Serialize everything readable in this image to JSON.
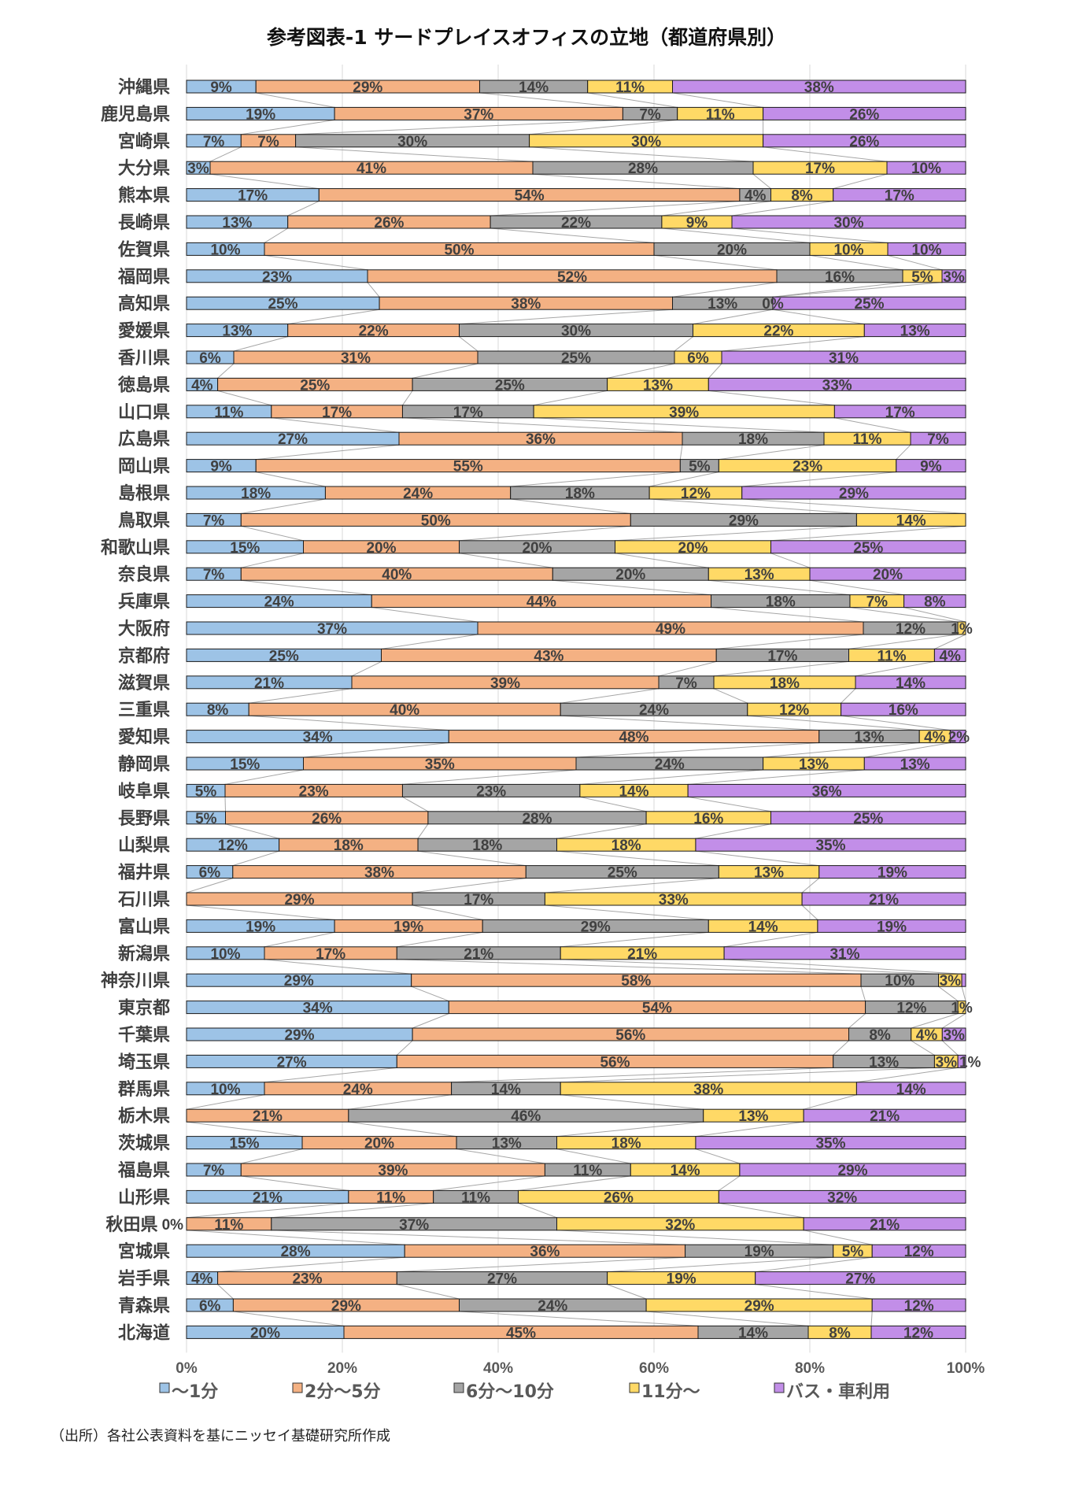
{
  "chart_data": {
    "type": "bar",
    "orientation": "horizontal",
    "stacked": "100%",
    "title": "参考図表-1  サードプレイスオフィスの立地（都道府県別）",
    "source": "（出所）各社公表資料を基にニッセイ基礎研究所作成",
    "xlim": [
      0,
      100
    ],
    "x_ticks": [
      "0%",
      "20%",
      "40%",
      "60%",
      "80%",
      "100%"
    ],
    "grid": true,
    "series_lines": true,
    "legend_position": "bottom",
    "series": [
      {
        "name": "～1分",
        "color": "#9dc3e6"
      },
      {
        "name": "2分～5分",
        "color": "#f4b183"
      },
      {
        "name": "6分～10分",
        "color": "#a5a5a5"
      },
      {
        "name": "11分～",
        "color": "#ffd966"
      },
      {
        "name": "バス・車利用",
        "color": "#c28ee8"
      }
    ],
    "rows": [
      {
        "category": "沖縄県",
        "values": [
          9,
          29,
          14,
          11,
          38
        ],
        "labels": [
          "9%",
          "29%",
          "14%",
          "11%",
          "38%"
        ]
      },
      {
        "category": "鹿児島県",
        "values": [
          19,
          37,
          7,
          11,
          26
        ],
        "labels": [
          "19%",
          "37%",
          "7%",
          "11%",
          "26%"
        ]
      },
      {
        "category": "宮崎県",
        "values": [
          7,
          7,
          30,
          30,
          26
        ],
        "labels": [
          "7%",
          "7%",
          "30%",
          "30%",
          "26%"
        ]
      },
      {
        "category": "大分県",
        "values": [
          3,
          41,
          28,
          17,
          10
        ],
        "labels": [
          "3%",
          "41%",
          "28%",
          "17%",
          "10%"
        ]
      },
      {
        "category": "熊本県",
        "values": [
          17,
          54,
          4,
          8,
          17
        ],
        "labels": [
          "17%",
          "54%",
          "4%",
          "8%",
          "17%"
        ]
      },
      {
        "category": "長崎県",
        "values": [
          13,
          26,
          22,
          9,
          30
        ],
        "labels": [
          "13%",
          "26%",
          "22%",
          "9%",
          "30%"
        ]
      },
      {
        "category": "佐賀県",
        "values": [
          10,
          50,
          20,
          10,
          10
        ],
        "labels": [
          "10%",
          "50%",
          "20%",
          "10%",
          "10%"
        ]
      },
      {
        "category": "福岡県",
        "values": [
          23,
          52,
          16,
          5,
          3
        ],
        "labels": [
          "23%",
          "52%",
          "16%",
          "5%",
          "3%"
        ]
      },
      {
        "category": "高知県",
        "values": [
          25,
          38,
          13,
          0,
          25
        ],
        "labels": [
          "25%",
          "38%",
          "13%",
          "0%",
          "25%"
        ]
      },
      {
        "category": "愛媛県",
        "values": [
          13,
          22,
          30,
          22,
          13
        ],
        "labels": [
          "13%",
          "22%",
          "30%",
          "22%",
          "13%"
        ]
      },
      {
        "category": "香川県",
        "values": [
          6,
          31,
          25,
          6,
          31
        ],
        "labels": [
          "6%",
          "31%",
          "25%",
          "6%",
          "31%"
        ]
      },
      {
        "category": "徳島県",
        "values": [
          4,
          25,
          25,
          13,
          33
        ],
        "labels": [
          "4%",
          "25%",
          "25%",
          "13%",
          "33%"
        ]
      },
      {
        "category": "山口県",
        "values": [
          11,
          17,
          17,
          39,
          17
        ],
        "labels": [
          "11%",
          "17%",
          "17%",
          "39%",
          "17%"
        ]
      },
      {
        "category": "広島県",
        "values": [
          27,
          36,
          18,
          11,
          7
        ],
        "labels": [
          "27%",
          "36%",
          "18%",
          "11%",
          "7%"
        ]
      },
      {
        "category": "岡山県",
        "values": [
          9,
          55,
          5,
          23,
          9
        ],
        "labels": [
          "9%",
          "55%",
          "5%",
          "23%",
          "9%"
        ]
      },
      {
        "category": "島根県",
        "values": [
          18,
          24,
          18,
          12,
          29
        ],
        "labels": [
          "18%",
          "24%",
          "18%",
          "12%",
          "29%"
        ]
      },
      {
        "category": "鳥取県",
        "values": [
          7,
          50,
          29,
          14,
          0
        ],
        "labels": [
          "7%",
          "50%",
          "29%",
          "14%",
          ""
        ]
      },
      {
        "category": "和歌山県",
        "values": [
          15,
          20,
          20,
          20,
          25
        ],
        "labels": [
          "15%",
          "20%",
          "20%",
          "20%",
          "25%"
        ]
      },
      {
        "category": "奈良県",
        "values": [
          7,
          40,
          20,
          13,
          20
        ],
        "labels": [
          "7%",
          "40%",
          "20%",
          "13%",
          "20%"
        ]
      },
      {
        "category": "兵庫県",
        "values": [
          24,
          44,
          18,
          7,
          8
        ],
        "labels": [
          "24%",
          "44%",
          "18%",
          "7%",
          "8%"
        ]
      },
      {
        "category": "大阪府",
        "values": [
          37,
          49,
          12,
          1,
          0
        ],
        "labels": [
          "37%",
          "49%",
          "12%",
          "1%",
          ""
        ]
      },
      {
        "category": "京都府",
        "values": [
          25,
          43,
          17,
          11,
          4
        ],
        "labels": [
          "25%",
          "43%",
          "17%",
          "11%",
          "4%"
        ]
      },
      {
        "category": "滋賀県",
        "values": [
          21,
          39,
          7,
          18,
          14
        ],
        "labels": [
          "21%",
          "39%",
          "7%",
          "18%",
          "14%"
        ]
      },
      {
        "category": "三重県",
        "values": [
          8,
          40,
          24,
          12,
          16
        ],
        "labels": [
          "8%",
          "40%",
          "24%",
          "12%",
          "16%"
        ]
      },
      {
        "category": "愛知県",
        "values": [
          34,
          48,
          13,
          4,
          2
        ],
        "labels": [
          "34%",
          "48%",
          "13%",
          "4%",
          "2%"
        ]
      },
      {
        "category": "静岡県",
        "values": [
          15,
          35,
          24,
          13,
          13
        ],
        "labels": [
          "15%",
          "35%",
          "24%",
          "13%",
          "13%"
        ]
      },
      {
        "category": "岐阜県",
        "values": [
          5,
          23,
          23,
          14,
          36
        ],
        "labels": [
          "5%",
          "23%",
          "23%",
          "14%",
          "36%"
        ]
      },
      {
        "category": "長野県",
        "values": [
          5,
          26,
          28,
          16,
          25
        ],
        "labels": [
          "5%",
          "26%",
          "28%",
          "16%",
          "25%"
        ]
      },
      {
        "category": "山梨県",
        "values": [
          12,
          18,
          18,
          18,
          35
        ],
        "labels": [
          "12%",
          "18%",
          "18%",
          "18%",
          "35%"
        ]
      },
      {
        "category": "福井県",
        "values": [
          6,
          38,
          25,
          13,
          19
        ],
        "labels": [
          "6%",
          "38%",
          "25%",
          "13%",
          "19%"
        ]
      },
      {
        "category": "石川県",
        "values": [
          0,
          29,
          17,
          33,
          21
        ],
        "labels": [
          "",
          "29%",
          "17%",
          "33%",
          "21%"
        ]
      },
      {
        "category": "富山県",
        "values": [
          19,
          19,
          29,
          14,
          19
        ],
        "labels": [
          "19%",
          "19%",
          "29%",
          "14%",
          "19%"
        ]
      },
      {
        "category": "新潟県",
        "values": [
          10,
          17,
          21,
          21,
          31
        ],
        "labels": [
          "10%",
          "17%",
          "21%",
          "21%",
          "31%"
        ]
      },
      {
        "category": "神奈川県",
        "values": [
          29,
          58,
          10,
          3,
          0.5
        ],
        "labels": [
          "29%",
          "58%",
          "10%",
          "3%",
          ""
        ]
      },
      {
        "category": "東京都",
        "values": [
          34,
          54,
          12,
          1,
          0
        ],
        "labels": [
          "34%",
          "54%",
          "12%",
          "1%",
          ""
        ]
      },
      {
        "category": "千葉県",
        "values": [
          29,
          56,
          8,
          4,
          3
        ],
        "labels": [
          "29%",
          "56%",
          "8%",
          "4%",
          "3%"
        ]
      },
      {
        "category": "埼玉県",
        "values": [
          27,
          56,
          13,
          3,
          1
        ],
        "labels": [
          "27%",
          "56%",
          "13%",
          "3%",
          "1%"
        ]
      },
      {
        "category": "群馬県",
        "values": [
          10,
          24,
          14,
          38,
          14
        ],
        "labels": [
          "10%",
          "24%",
          "14%",
          "38%",
          "14%"
        ]
      },
      {
        "category": "栃木県",
        "values": [
          0,
          21,
          46,
          13,
          21
        ],
        "labels": [
          "",
          "21%",
          "46%",
          "13%",
          "21%"
        ]
      },
      {
        "category": "茨城県",
        "values": [
          15,
          20,
          13,
          18,
          35
        ],
        "labels": [
          "15%",
          "20%",
          "13%",
          "18%",
          "35%"
        ]
      },
      {
        "category": "福島県",
        "values": [
          7,
          39,
          11,
          14,
          29
        ],
        "labels": [
          "7%",
          "39%",
          "11%",
          "14%",
          "29%"
        ]
      },
      {
        "category": "山形県",
        "values": [
          21,
          11,
          11,
          26,
          32
        ],
        "labels": [
          "21%",
          "11%",
          "11%",
          "26%",
          "32%"
        ]
      },
      {
        "category": "秋田県",
        "values": [
          0,
          11,
          37,
          32,
          21
        ],
        "labels": [
          "0%",
          "11%",
          "37%",
          "32%",
          "21%"
        ]
      },
      {
        "category": "宮城県",
        "values": [
          28,
          36,
          19,
          5,
          12
        ],
        "labels": [
          "28%",
          "36%",
          "19%",
          "5%",
          "12%"
        ]
      },
      {
        "category": "岩手県",
        "values": [
          4,
          23,
          27,
          19,
          27
        ],
        "labels": [
          "4%",
          "23%",
          "27%",
          "19%",
          "27%"
        ]
      },
      {
        "category": "青森県",
        "values": [
          6,
          29,
          24,
          29,
          12
        ],
        "labels": [
          "6%",
          "29%",
          "24%",
          "29%",
          "12%"
        ]
      },
      {
        "category": "北海道",
        "values": [
          20,
          45,
          14,
          8,
          12
        ],
        "labels": [
          "20%",
          "45%",
          "14%",
          "8%",
          "12%"
        ]
      }
    ]
  }
}
